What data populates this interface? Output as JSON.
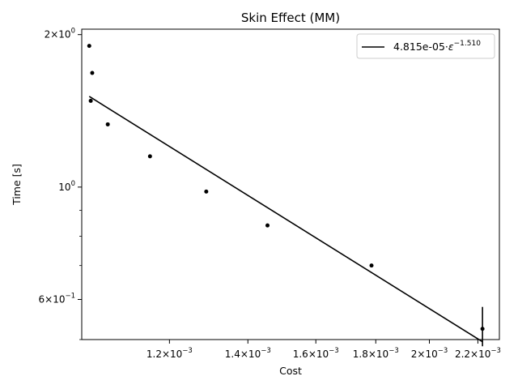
{
  "chart_data": {
    "type": "scatter",
    "title": "Skin Effect (MM)",
    "xlabel": "Cost",
    "ylabel": "Time [s]",
    "xscale": "log",
    "yscale": "log",
    "xlim": [
      0.00101,
      0.002295
    ],
    "ylim": [
      0.5,
      2.05
    ],
    "grid": false,
    "legend_position": "top-right",
    "points": {
      "x": [
        0.001025,
        0.001031,
        0.001028,
        0.001063,
        0.001155,
        0.00129,
        0.001455,
        0.001785,
        0.00222
      ],
      "y": [
        1.9,
        1.68,
        1.48,
        1.33,
        1.15,
        0.98,
        0.84,
        0.7,
        0.525
      ]
    },
    "error_bar": {
      "x": 0.00222,
      "low": 0.485,
      "high": 0.58
    },
    "fit": {
      "label_main": "4.815e-05·",
      "label_symbol": "ε",
      "label_exponent": "−1.510",
      "x": [
        0.001025,
        0.00222
      ],
      "y": [
        1.51,
        0.495
      ]
    },
    "x_ticks": [
      {
        "value": 0.0012,
        "mant": "1.2",
        "exp": "−3"
      },
      {
        "value": 0.0014,
        "mant": "1.4",
        "exp": "−3"
      },
      {
        "value": 0.0016,
        "mant": "1.6",
        "exp": "−3"
      },
      {
        "value": 0.0018,
        "mant": "1.8",
        "exp": "−3"
      },
      {
        "value": 0.002,
        "mant": "2",
        "exp": "−3"
      },
      {
        "value": 0.0022,
        "mant": "2.2",
        "exp": "−3"
      }
    ],
    "y_major_ticks": [
      {
        "value": 2.0,
        "mant": "2",
        "exp": "0"
      },
      {
        "value": 1.0,
        "mant": "",
        "exp": "0"
      },
      {
        "value": 0.6,
        "mant": "6",
        "exp": "−1"
      }
    ],
    "y_minor_ticks": [
      0.5,
      0.7,
      0.8,
      0.9
    ],
    "colors": {
      "markers": "#000000",
      "fit_line": "#000000"
    }
  }
}
